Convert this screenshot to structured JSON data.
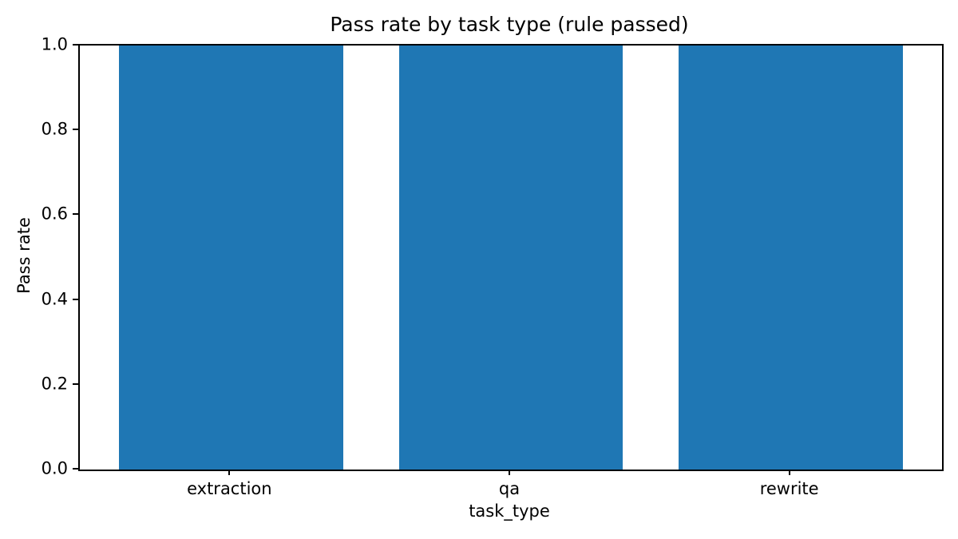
{
  "chart_data": {
    "type": "bar",
    "title": "Pass rate by task type (rule passed)",
    "xlabel": "task_type",
    "ylabel": "Pass rate",
    "categories": [
      "extraction",
      "qa",
      "rewrite"
    ],
    "values": [
      1.0,
      1.0,
      1.0
    ],
    "ylim": [
      0.0,
      1.0
    ],
    "yticks": [
      0.0,
      0.2,
      0.4,
      0.6,
      0.8,
      1.0
    ],
    "ytick_labels": [
      "0.0",
      "0.2",
      "0.4",
      "0.6",
      "0.8",
      "1.0"
    ],
    "bar_width_fraction": 0.8,
    "bar_color": "#1f77b4",
    "axis_color": "#000000",
    "text_color": "#000000",
    "background_color": "#ffffff",
    "grid": false,
    "legend": null
  }
}
